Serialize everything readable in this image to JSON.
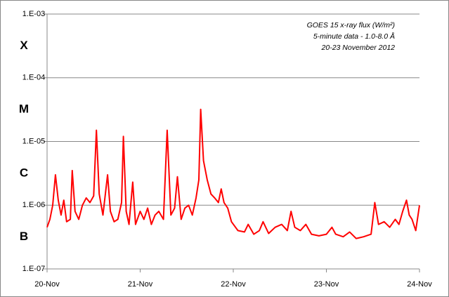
{
  "chart_data": {
    "type": "line",
    "annotations": [
      "GOES 15 x-ray flux (W/m²)",
      "5-minute data - 1.0-8.0 Å",
      "20-23 November 2012"
    ],
    "class_labels": [
      "X",
      "M",
      "C",
      "B"
    ],
    "log_scale": true,
    "grid": true,
    "xlim": [
      0,
      4
    ],
    "xticks": [
      {
        "value": 0,
        "label": "20-Nov"
      },
      {
        "value": 1,
        "label": "21-Nov"
      },
      {
        "value": 2,
        "label": "22-Nov"
      },
      {
        "value": 3,
        "label": "23-Nov"
      },
      {
        "value": 4,
        "label": "24-Nov"
      }
    ],
    "ylim": [
      1e-07,
      0.001
    ],
    "yticks": [
      {
        "value": 1e-07,
        "label": "1.E-07"
      },
      {
        "value": 1e-06,
        "label": "1.E-06"
      },
      {
        "value": 1e-05,
        "label": "1.E-05"
      },
      {
        "value": 0.0001,
        "label": "1.E-04"
      },
      {
        "value": 0.001,
        "label": "1.E-03"
      }
    ],
    "series": [
      {
        "color": "#ff0000",
        "x": [
          0,
          0.03,
          0.06,
          0.09,
          0.12,
          0.15,
          0.18,
          0.21,
          0.25,
          0.27,
          0.3,
          0.34,
          0.38,
          0.42,
          0.46,
          0.5,
          0.53,
          0.56,
          0.6,
          0.65,
          0.68,
          0.72,
          0.76,
          0.8,
          0.82,
          0.85,
          0.88,
          0.92,
          0.95,
          1,
          1.04,
          1.08,
          1.12,
          1.16,
          1.2,
          1.25,
          1.29,
          1.33,
          1.37,
          1.4,
          1.44,
          1.48,
          1.52,
          1.56,
          1.6,
          1.63,
          1.65,
          1.68,
          1.72,
          1.76,
          1.8,
          1.84,
          1.87,
          1.9,
          1.94,
          1.98,
          2.05,
          2.12,
          2.16,
          2.22,
          2.28,
          2.32,
          2.38,
          2.45,
          2.52,
          2.58,
          2.62,
          2.66,
          2.72,
          2.78,
          2.84,
          2.92,
          3,
          3.06,
          3.1,
          3.18,
          3.25,
          3.32,
          3.4,
          3.48,
          3.52,
          3.56,
          3.62,
          3.68,
          3.74,
          3.78,
          3.82,
          3.86,
          3.89,
          3.92,
          3.96,
          4
        ],
        "values": [
          4.5e-07,
          6e-07,
          1e-06,
          3e-06,
          1.2e-06,
          7e-07,
          1.2e-06,
          5.5e-07,
          6e-07,
          3.5e-06,
          8e-07,
          6e-07,
          1e-06,
          1.3e-06,
          1.1e-06,
          1.4e-06,
          1.5e-05,
          1.5e-06,
          7e-07,
          3e-06,
          8e-07,
          5.5e-07,
          6e-07,
          1.1e-06,
          1.2e-05,
          8e-07,
          5e-07,
          2.3e-06,
          5e-07,
          8e-07,
          6e-07,
          9e-07,
          5e-07,
          7e-07,
          8e-07,
          6e-07,
          1.5e-05,
          7e-07,
          9e-07,
          2.8e-06,
          6e-07,
          9e-07,
          1e-06,
          7e-07,
          1.3e-06,
          2.5e-06,
          3.2e-05,
          5e-06,
          2.5e-06,
          1.5e-06,
          1.3e-06,
          1.1e-06,
          1.8e-06,
          1.1e-06,
          9e-07,
          5.5e-07,
          4e-07,
          3.8e-07,
          5e-07,
          3.5e-07,
          4e-07,
          5.5e-07,
          3.6e-07,
          4.5e-07,
          5e-07,
          4e-07,
          8e-07,
          4.5e-07,
          4e-07,
          5e-07,
          3.5e-07,
          3.3e-07,
          3.5e-07,
          4.5e-07,
          3.5e-07,
          3.2e-07,
          3.8e-07,
          3e-07,
          3.2e-07,
          3.5e-07,
          1.1e-06,
          5e-07,
          5.5e-07,
          4.5e-07,
          6e-07,
          5e-07,
          8e-07,
          1.2e-06,
          7e-07,
          6e-07,
          4e-07,
          1e-06
        ]
      }
    ]
  }
}
